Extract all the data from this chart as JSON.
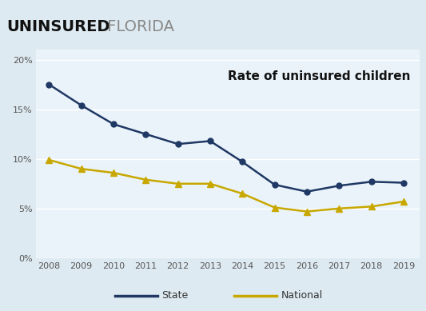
{
  "title_bold": "UNINSURED",
  "title_light": " FLORIDA",
  "annotation": "Rate of uninsured children",
  "years": [
    2008,
    2009,
    2010,
    2011,
    2012,
    2013,
    2014,
    2015,
    2016,
    2017,
    2018,
    2019
  ],
  "state": [
    17.5,
    15.4,
    13.5,
    12.5,
    11.5,
    11.8,
    9.7,
    7.4,
    6.7,
    7.3,
    7.7,
    7.6
  ],
  "national": [
    9.9,
    9.0,
    8.6,
    7.9,
    7.5,
    7.5,
    6.5,
    5.1,
    4.7,
    5.0,
    5.2,
    5.7
  ],
  "state_color": "#1f3864",
  "national_color": "#c8a800",
  "background_color": "#deeaf1",
  "plot_bg": "#eaf3f9",
  "grid_color": "#ffffff",
  "ylim": [
    0,
    21
  ],
  "yticks": [
    0,
    5,
    10,
    15,
    20
  ],
  "ytick_labels": [
    "0%",
    "5%",
    "10%",
    "15%",
    "20%"
  ],
  "legend_state": "State",
  "legend_national": "National",
  "title_bold_size": 14,
  "title_light_size": 14,
  "annotation_fontsize": 11,
  "tick_fontsize": 8
}
